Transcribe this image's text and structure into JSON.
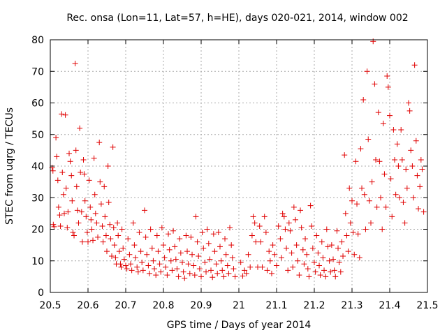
{
  "chart_data": {
    "type": "scatter",
    "title": "Rec. onsa (Lon=11, Lat=57, h=HE), days 020-021, 2014, window 002",
    "xlabel": "GPS time / Days of year 2014",
    "ylabel": "STEC from uqrg / TECUs",
    "xlim": [
      20.5,
      21.5
    ],
    "ylim": [
      0,
      80
    ],
    "xticks": [
      "20.5",
      "20.6",
      "20.7",
      "20.8",
      "20.9",
      "21",
      "21.1",
      "21.2",
      "21.3",
      "21.4",
      "21.5"
    ],
    "yticks": [
      "0",
      "10",
      "20",
      "30",
      "40",
      "50",
      "60",
      "70",
      "80"
    ],
    "grid": true,
    "marker": "+",
    "color": "#e00000",
    "series": [
      {
        "name": "STEC",
        "points": [
          [
            20.505,
            39.5
          ],
          [
            20.507,
            38.5
          ],
          [
            20.508,
            21.5
          ],
          [
            20.51,
            20.8
          ],
          [
            20.515,
            49.0
          ],
          [
            20.517,
            43.0
          ],
          [
            20.52,
            35.5
          ],
          [
            20.522,
            27.0
          ],
          [
            20.525,
            24.5
          ],
          [
            20.527,
            21.0
          ],
          [
            20.53,
            56.5
          ],
          [
            20.532,
            38.0
          ],
          [
            20.535,
            31.0
          ],
          [
            20.537,
            25.0
          ],
          [
            20.54,
            56.2
          ],
          [
            20.542,
            33.0
          ],
          [
            20.545,
            20.5
          ],
          [
            20.547,
            25.5
          ],
          [
            20.55,
            44.0
          ],
          [
            20.553,
            41.5
          ],
          [
            20.556,
            37.0
          ],
          [
            20.558,
            29.0
          ],
          [
            20.56,
            19.0
          ],
          [
            20.563,
            18.0
          ],
          [
            20.566,
            72.5
          ],
          [
            20.568,
            45.0
          ],
          [
            20.57,
            33.5
          ],
          [
            20.572,
            26.0
          ],
          [
            20.575,
            22.0
          ],
          [
            20.578,
            52.0
          ],
          [
            20.58,
            38.0
          ],
          [
            20.583,
            25.5
          ],
          [
            20.585,
            16.0
          ],
          [
            20.588,
            42.0
          ],
          [
            20.59,
            37.5
          ],
          [
            20.592,
            29.0
          ],
          [
            20.595,
            24.0
          ],
          [
            20.598,
            19.0
          ],
          [
            20.6,
            16.0
          ],
          [
            20.603,
            35.5
          ],
          [
            20.606,
            27.0
          ],
          [
            20.608,
            23.0
          ],
          [
            20.61,
            20.0
          ],
          [
            20.613,
            16.5
          ],
          [
            20.616,
            42.5
          ],
          [
            20.618,
            31.0
          ],
          [
            20.62,
            25.0
          ],
          [
            20.623,
            22.0
          ],
          [
            20.626,
            17.5
          ],
          [
            20.63,
            47.5
          ],
          [
            20.632,
            35.0
          ],
          [
            20.635,
            28.0
          ],
          [
            20.638,
            21.0
          ],
          [
            20.64,
            16.0
          ],
          [
            20.643,
            33.5
          ],
          [
            20.645,
            24.0
          ],
          [
            20.648,
            18.0
          ],
          [
            20.65,
            13.0
          ],
          [
            20.653,
            40.0
          ],
          [
            20.655,
            28.5
          ],
          [
            20.658,
            21.5
          ],
          [
            20.66,
            17.0
          ],
          [
            20.663,
            11.5
          ],
          [
            20.666,
            46.0
          ],
          [
            20.668,
            20.5
          ],
          [
            20.67,
            15.0
          ],
          [
            20.673,
            11.0
          ],
          [
            20.675,
            9.0
          ],
          [
            20.678,
            22.0
          ],
          [
            20.68,
            18.0
          ],
          [
            20.683,
            13.0
          ],
          [
            20.686,
            9.0
          ],
          [
            20.688,
            8.0
          ],
          [
            20.69,
            20.0
          ],
          [
            20.693,
            14.0
          ],
          [
            20.696,
            10.5
          ],
          [
            20.7,
            8.5
          ],
          [
            20.703,
            7.5
          ],
          [
            20.706,
            17.0
          ],
          [
            20.71,
            12.0
          ],
          [
            20.713,
            9.0
          ],
          [
            20.716,
            7.0
          ],
          [
            20.72,
            22.0
          ],
          [
            20.723,
            15.0
          ],
          [
            20.726,
            11.0
          ],
          [
            20.73,
            8.0
          ],
          [
            20.733,
            6.5
          ],
          [
            20.736,
            19.0
          ],
          [
            20.74,
            13.0
          ],
          [
            20.743,
            9.5
          ],
          [
            20.746,
            7.0
          ],
          [
            20.75,
            26.0
          ],
          [
            20.753,
            17.5
          ],
          [
            20.756,
            12.0
          ],
          [
            20.76,
            8.5
          ],
          [
            20.763,
            6.0
          ],
          [
            20.766,
            20.0
          ],
          [
            20.77,
            14.0
          ],
          [
            20.773,
            10.0
          ],
          [
            20.776,
            7.5
          ],
          [
            20.78,
            5.5
          ],
          [
            20.783,
            18.0
          ],
          [
            20.786,
            13.0
          ],
          [
            20.79,
            9.0
          ],
          [
            20.793,
            6.5
          ],
          [
            20.796,
            20.5
          ],
          [
            20.8,
            15.0
          ],
          [
            20.803,
            11.0
          ],
          [
            20.806,
            8.0
          ],
          [
            20.81,
            5.5
          ],
          [
            20.813,
            18.5
          ],
          [
            20.816,
            13.5
          ],
          [
            20.82,
            10.0
          ],
          [
            20.823,
            7.0
          ],
          [
            20.826,
            19.5
          ],
          [
            20.83,
            14.5
          ],
          [
            20.833,
            10.5
          ],
          [
            20.836,
            7.5
          ],
          [
            20.84,
            5.0
          ],
          [
            20.843,
            17.0
          ],
          [
            20.846,
            12.5
          ],
          [
            20.85,
            9.5
          ],
          [
            20.853,
            6.5
          ],
          [
            20.856,
            4.5
          ],
          [
            20.86,
            18.0
          ],
          [
            20.863,
            13.0
          ],
          [
            20.866,
            9.0
          ],
          [
            20.87,
            6.0
          ],
          [
            20.873,
            17.5
          ],
          [
            20.876,
            12.0
          ],
          [
            20.88,
            8.5
          ],
          [
            20.883,
            5.5
          ],
          [
            20.886,
            24.0
          ],
          [
            20.89,
            16.0
          ],
          [
            20.893,
            11.5
          ],
          [
            20.896,
            7.5
          ],
          [
            20.9,
            5.0
          ],
          [
            20.903,
            19.0
          ],
          [
            20.906,
            14.0
          ],
          [
            20.91,
            9.5
          ],
          [
            20.913,
            6.5
          ],
          [
            20.916,
            20.0
          ],
          [
            20.92,
            15.5
          ],
          [
            20.923,
            10.5
          ],
          [
            20.926,
            7.0
          ],
          [
            20.93,
            4.8
          ],
          [
            20.933,
            18.5
          ],
          [
            20.936,
            13.0
          ],
          [
            20.94,
            9.0
          ],
          [
            20.943,
            6.0
          ],
          [
            20.946,
            19.0
          ],
          [
            20.95,
            14.5
          ],
          [
            20.953,
            10.0
          ],
          [
            20.956,
            7.0
          ],
          [
            20.96,
            5.0
          ],
          [
            20.963,
            17.0
          ],
          [
            20.966,
            12.0
          ],
          [
            20.97,
            8.5
          ],
          [
            20.973,
            6.0
          ],
          [
            20.976,
            20.5
          ],
          [
            20.98,
            15.0
          ],
          [
            20.983,
            11.0
          ],
          [
            20.986,
            7.5
          ],
          [
            20.99,
            5.0
          ],
          [
            21.005,
            9.5
          ],
          [
            21.01,
            5.2
          ],
          [
            21.015,
            7.0
          ],
          [
            21.02,
            6.0
          ],
          [
            21.025,
            12.0
          ],
          [
            21.03,
            8.0
          ],
          [
            21.035,
            18.0
          ],
          [
            21.038,
            24.0
          ],
          [
            21.042,
            22.0
          ],
          [
            21.045,
            16.0
          ],
          [
            21.05,
            8.0
          ],
          [
            21.055,
            21.0
          ],
          [
            21.058,
            16.0
          ],
          [
            21.062,
            8.0
          ],
          [
            21.068,
            24.0
          ],
          [
            21.072,
            19.0
          ],
          [
            21.075,
            7.0
          ],
          [
            21.08,
            13.0
          ],
          [
            21.083,
            10.0
          ],
          [
            21.087,
            6.0
          ],
          [
            21.09,
            15.0
          ],
          [
            21.095,
            12.0
          ],
          [
            21.1,
            8.5
          ],
          [
            21.105,
            21.0
          ],
          [
            21.11,
            17.0
          ],
          [
            21.113,
            11.0
          ],
          [
            21.116,
            25.0
          ],
          [
            21.12,
            24.0
          ],
          [
            21.123,
            20.0
          ],
          [
            21.126,
            14.0
          ],
          [
            21.13,
            7.0
          ],
          [
            21.133,
            22.0
          ],
          [
            21.136,
            19.5
          ],
          [
            21.14,
            12.5
          ],
          [
            21.143,
            8.0
          ],
          [
            21.146,
            27.0
          ],
          [
            21.15,
            23.0
          ],
          [
            21.153,
            15.0
          ],
          [
            21.156,
            10.0
          ],
          [
            21.16,
            5.5
          ],
          [
            21.163,
            26.0
          ],
          [
            21.166,
            20.5
          ],
          [
            21.17,
            13.5
          ],
          [
            21.173,
            9.0
          ],
          [
            21.176,
            17.0
          ],
          [
            21.18,
            12.0
          ],
          [
            21.183,
            7.5
          ],
          [
            21.186,
            5.0
          ],
          [
            21.19,
            27.5
          ],
          [
            21.193,
            21.0
          ],
          [
            21.196,
            14.0
          ],
          [
            21.2,
            9.5
          ],
          [
            21.203,
            6.5
          ],
          [
            21.206,
            18.0
          ],
          [
            21.21,
            12.5
          ],
          [
            21.213,
            8.5
          ],
          [
            21.216,
            5.5
          ],
          [
            21.22,
            16.0
          ],
          [
            21.223,
            11.0
          ],
          [
            21.226,
            7.0
          ],
          [
            21.23,
            5.0
          ],
          [
            21.233,
            20.0
          ],
          [
            21.236,
            14.5
          ],
          [
            21.24,
            10.0
          ],
          [
            21.243,
            6.5
          ],
          [
            21.246,
            15.0
          ],
          [
            21.25,
            10.5
          ],
          [
            21.253,
            7.0
          ],
          [
            21.256,
            5.0
          ],
          [
            21.26,
            19.5
          ],
          [
            21.263,
            14.0
          ],
          [
            21.266,
            9.5
          ],
          [
            21.27,
            6.5
          ],
          [
            21.273,
            16.0
          ],
          [
            21.276,
            11.5
          ],
          [
            21.28,
            43.5
          ],
          [
            21.283,
            25.0
          ],
          [
            21.286,
            18.0
          ],
          [
            21.29,
            13.0
          ],
          [
            21.293,
            33.0
          ],
          [
            21.296,
            22.0
          ],
          [
            21.3,
            29.0
          ],
          [
            21.303,
            19.0
          ],
          [
            21.306,
            12.0
          ],
          [
            21.31,
            41.5
          ],
          [
            21.313,
            28.0
          ],
          [
            21.316,
            18.5
          ],
          [
            21.32,
            11.0
          ],
          [
            21.323,
            45.5
          ],
          [
            21.326,
            33.0
          ],
          [
            21.33,
            61.0
          ],
          [
            21.333,
            31.0
          ],
          [
            21.336,
            20.0
          ],
          [
            21.34,
            70.0
          ],
          [
            21.343,
            48.5
          ],
          [
            21.346,
            29.0
          ],
          [
            21.35,
            22.0
          ],
          [
            21.353,
            35.0
          ],
          [
            21.356,
            79.5
          ],
          [
            21.36,
            66.0
          ],
          [
            21.363,
            42.0
          ],
          [
            21.366,
            27.0
          ],
          [
            21.37,
            57.0
          ],
          [
            21.373,
            41.5
          ],
          [
            21.376,
            30.0
          ],
          [
            21.38,
            20.0
          ],
          [
            21.383,
            53.5
          ],
          [
            21.386,
            37.5
          ],
          [
            21.39,
            27.0
          ],
          [
            21.393,
            68.5
          ],
          [
            21.396,
            65.0
          ],
          [
            21.4,
            56.0
          ],
          [
            21.403,
            36.0
          ],
          [
            21.406,
            24.0
          ],
          [
            21.41,
            51.5
          ],
          [
            21.413,
            42.0
          ],
          [
            21.416,
            31.0
          ],
          [
            21.42,
            47.0
          ],
          [
            21.423,
            40.0
          ],
          [
            21.426,
            30.0
          ],
          [
            21.43,
            51.5
          ],
          [
            21.433,
            42.0
          ],
          [
            21.436,
            28.5
          ],
          [
            21.44,
            22.0
          ],
          [
            21.443,
            39.0
          ],
          [
            21.446,
            33.0
          ],
          [
            21.45,
            60.0
          ],
          [
            21.453,
            57.5
          ],
          [
            21.456,
            45.0
          ],
          [
            21.46,
            40.0
          ],
          [
            21.463,
            30.0
          ],
          [
            21.466,
            72.0
          ],
          [
            21.47,
            48.0
          ],
          [
            21.473,
            37.0
          ],
          [
            21.476,
            26.5
          ],
          [
            21.48,
            33.5
          ],
          [
            21.483,
            42.0
          ],
          [
            21.486,
            39.0
          ],
          [
            21.49,
            25.5
          ]
        ]
      }
    ]
  }
}
